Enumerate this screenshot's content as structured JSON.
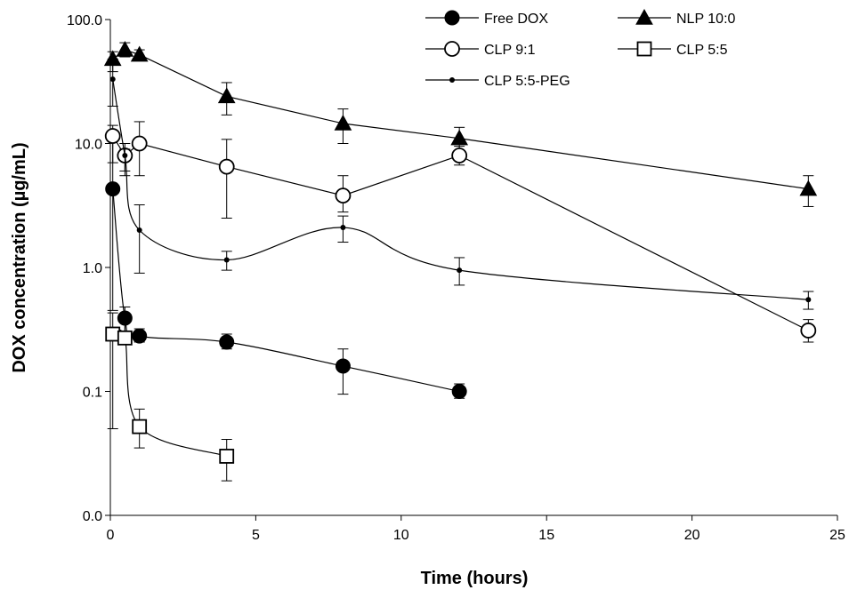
{
  "chart_data": {
    "type": "line",
    "xlabel": "Time (hours)",
    "ylabel": "DOX concentration (µg/mL)",
    "x_scale": "linear",
    "y_scale": "log",
    "xlim": [
      0,
      25
    ],
    "ylim": [
      0.01,
      100
    ],
    "x_ticks": [
      0,
      5,
      10,
      15,
      20,
      25
    ],
    "x_tick_labels": [
      "0",
      "5",
      "10",
      "15",
      "20",
      "25"
    ],
    "y_ticks": [
      0.01,
      0.1,
      1,
      10,
      100
    ],
    "y_tick_labels": [
      "0.0",
      "0.1",
      "1.0",
      "10.0",
      "100.0"
    ],
    "grid": false,
    "legend_position": "top-right",
    "series": [
      {
        "name": "Free DOX",
        "marker": "filled-circle",
        "color": "#000000",
        "curve": "smooth",
        "x": [
          0.083,
          0.5,
          1,
          4,
          8,
          12
        ],
        "y": [
          4.3,
          0.39,
          0.28,
          0.25,
          0.16,
          0.1
        ],
        "err_low": [
          0.45,
          0.28,
          0.25,
          0.22,
          0.095,
          0.088
        ],
        "err_high": [
          12,
          0.48,
          0.32,
          0.29,
          0.22,
          0.115
        ]
      },
      {
        "name": "NLP 10:0",
        "marker": "filled-triangle",
        "color": "#000000",
        "curve": "straight",
        "x": [
          0.083,
          0.5,
          1,
          4,
          8,
          12,
          24
        ],
        "y": [
          48,
          57,
          52,
          24,
          14.5,
          11,
          4.3
        ],
        "err_low": [
          38,
          50,
          48,
          17,
          10,
          8.5,
          3.1
        ],
        "err_high": [
          55,
          65,
          57,
          31,
          19,
          13.5,
          5.5
        ]
      },
      {
        "name": "CLP 9:1",
        "marker": "open-circle",
        "color": "#000000",
        "curve": "straight",
        "x": [
          0.083,
          0.5,
          1,
          4,
          8,
          12,
          24
        ],
        "y": [
          11.5,
          8,
          10,
          6.5,
          3.8,
          8,
          0.31
        ],
        "err_low": [
          7,
          5.5,
          5.5,
          2.5,
          2.8,
          6.7,
          0.25
        ],
        "err_high": [
          14,
          10,
          15,
          10.8,
          5.5,
          9.5,
          0.38
        ]
      },
      {
        "name": "CLP 5:5",
        "marker": "open-square",
        "color": "#000000",
        "curve": "smooth",
        "x": [
          0.083,
          0.5,
          1,
          4
        ],
        "y": [
          0.29,
          0.27,
          0.052,
          0.03
        ],
        "err_low": [
          0.05,
          0.25,
          0.035,
          0.019
        ],
        "err_high": [
          0.43,
          0.36,
          0.072,
          0.041
        ]
      },
      {
        "name": "CLP 5:5-PEG",
        "marker": "small-dot",
        "color": "#000000",
        "curve": "smooth",
        "x": [
          0.083,
          0.5,
          1,
          4,
          8,
          12,
          24
        ],
        "y": [
          33,
          8,
          2,
          1.15,
          2.1,
          0.95,
          0.55
        ],
        "err_low": [
          20,
          6,
          0.9,
          0.95,
          1.6,
          0.72,
          0.46
        ],
        "err_high": [
          48,
          9,
          3.2,
          1.35,
          2.6,
          1.2,
          0.64
        ]
      }
    ]
  }
}
